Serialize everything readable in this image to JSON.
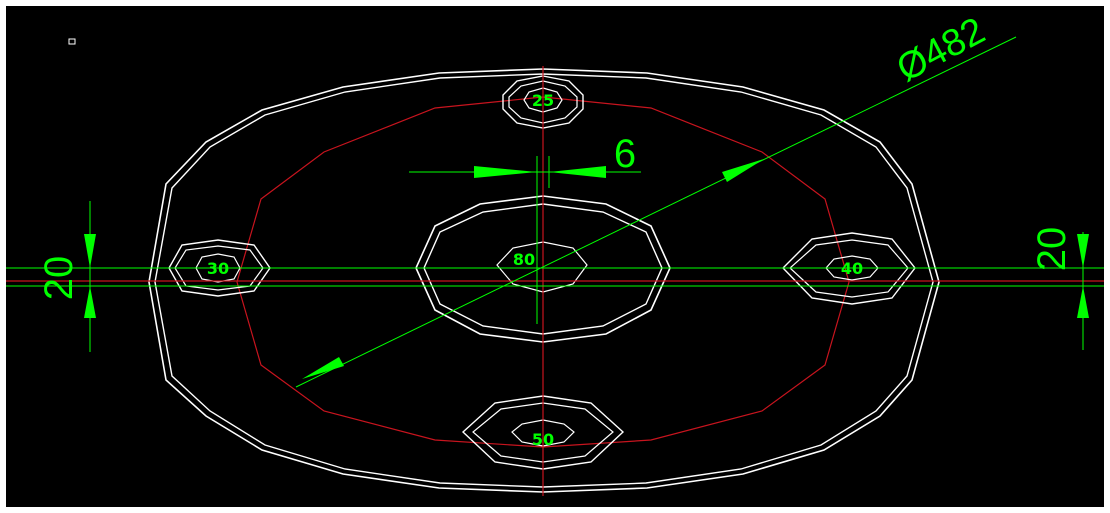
{
  "colors": {
    "background": "#000000",
    "outline": "#ffffff",
    "pitch_circle": "#c8141e",
    "dimension": "#00ff00",
    "hole_label": "#00ff00"
  },
  "holes": {
    "top": "25",
    "left": "30",
    "right": "40",
    "bottom": "50",
    "center": "80"
  },
  "dimensions": {
    "diameter": "Ø482",
    "center_gap": "6",
    "left_height": "20",
    "right_height": "20"
  }
}
